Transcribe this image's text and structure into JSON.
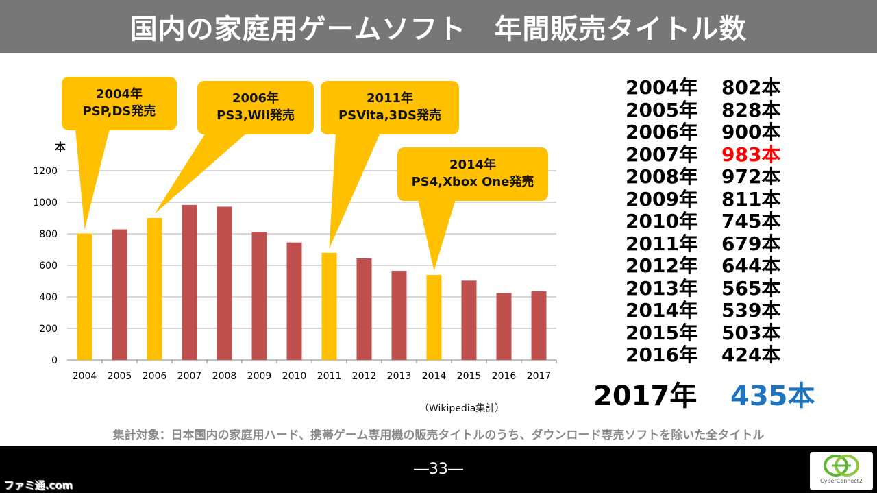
{
  "title": "国内の家庭用ゲームソフト　年間販売タイトル数",
  "colors": {
    "highlight_bar": "#ffc000",
    "normal_bar": "#c0504d",
    "peak_value": "#ff0000",
    "final_value": "#1e73be"
  },
  "chart_data": {
    "type": "bar",
    "categories": [
      "2004",
      "2005",
      "2006",
      "2007",
      "2008",
      "2009",
      "2010",
      "2011",
      "2012",
      "2013",
      "2014",
      "2015",
      "2016",
      "2017"
    ],
    "values": [
      802,
      828,
      900,
      983,
      972,
      811,
      745,
      679,
      644,
      565,
      539,
      503,
      424,
      435
    ],
    "highlighted": [
      "2004",
      "2006",
      "2011",
      "2014"
    ],
    "ylabel": "本",
    "ylim": [
      0,
      1200
    ],
    "yticks": [
      0,
      200,
      400,
      600,
      800,
      1000,
      1200
    ],
    "grid": true,
    "source": "（Wikipedia集計）",
    "annotations": [
      {
        "line1": "2004年",
        "line2": "PSP,DS発売",
        "category": "2004"
      },
      {
        "line1": "2006年",
        "line2": "PS3,Wii発売",
        "category": "2006"
      },
      {
        "line1": "2011年",
        "line2": "PSVita,3DS発売",
        "category": "2011"
      },
      {
        "line1": "2014年",
        "line2": "PS4,Xbox One発売",
        "category": "2014"
      }
    ]
  },
  "table": {
    "rows": [
      {
        "year": "2004年",
        "count": "802本"
      },
      {
        "year": "2005年",
        "count": "828本"
      },
      {
        "year": "2006年",
        "count": "900本"
      },
      {
        "year": "2007年",
        "count": "983本",
        "highlight": true
      },
      {
        "year": "2008年",
        "count": "972本"
      },
      {
        "year": "2009年",
        "count": "811本"
      },
      {
        "year": "2010年",
        "count": "745本"
      },
      {
        "year": "2011年",
        "count": "679本"
      },
      {
        "year": "2012年",
        "count": "644本"
      },
      {
        "year": "2013年",
        "count": "565本"
      },
      {
        "year": "2014年",
        "count": "539本"
      },
      {
        "year": "2015年",
        "count": "503本"
      },
      {
        "year": "2016年",
        "count": "424本"
      }
    ],
    "final": {
      "year": "2017年",
      "count": "435本"
    }
  },
  "footnote": "集計対象：日本国内の家庭用ハード、携帯ゲーム専用機の販売タイトルのうち、ダウンロード専売ソフトを除いた全タイトル",
  "page_number": "―33―",
  "logo": {
    "name": "cyberconnect2-logo",
    "text": "CyberConnect2"
  },
  "watermark": "ファミ通.com"
}
